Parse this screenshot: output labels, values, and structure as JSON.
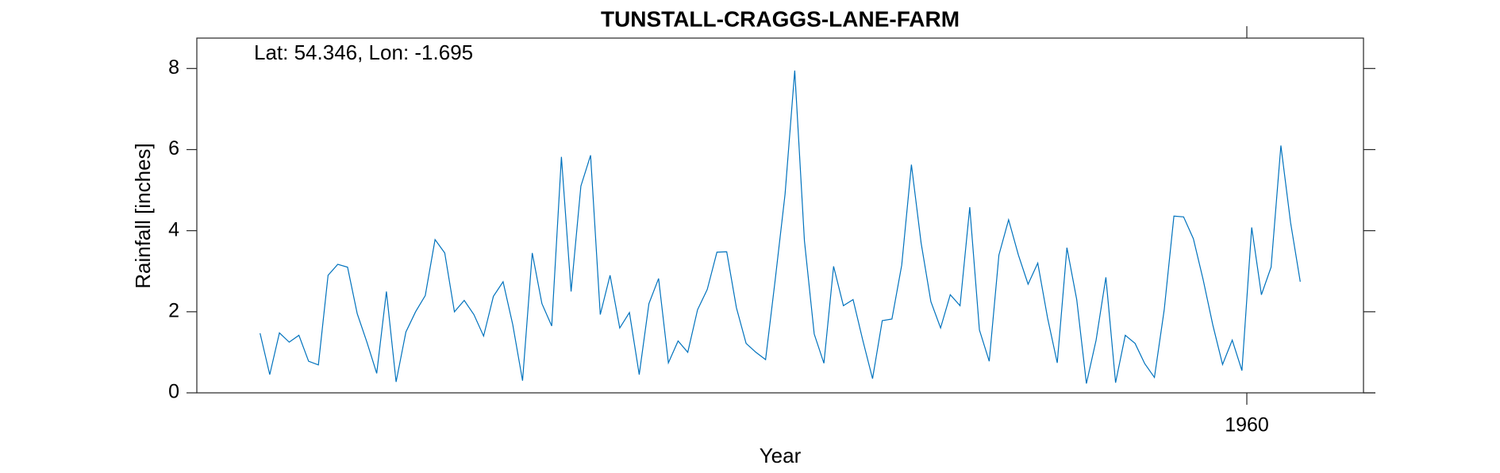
{
  "chart_data": {
    "type": "line",
    "title": "TUNSTALL-CRAGGS-LANE-FARM",
    "annotation": "Lat: 54.346, Lon: -1.695",
    "xlabel": "Year",
    "ylabel": "Rainfall [inches]",
    "xlim": [
      1951,
      1961
    ],
    "xticks": [
      1960
    ],
    "ylim": [
      0,
      8.75
    ],
    "yticks": [
      0,
      2,
      4,
      6,
      8
    ],
    "grid": false,
    "x": [
      1951.542,
      1951.625,
      1951.708,
      1951.792,
      1951.875,
      1951.958,
      1952.042,
      1952.125,
      1952.208,
      1952.292,
      1952.375,
      1952.458,
      1952.542,
      1952.625,
      1952.708,
      1952.792,
      1952.875,
      1952.958,
      1953.042,
      1953.125,
      1953.208,
      1953.292,
      1953.375,
      1953.458,
      1953.542,
      1953.625,
      1953.708,
      1953.792,
      1953.875,
      1953.958,
      1954.042,
      1954.125,
      1954.208,
      1954.292,
      1954.375,
      1954.458,
      1954.542,
      1954.625,
      1954.708,
      1954.792,
      1954.875,
      1954.958,
      1955.042,
      1955.125,
      1955.208,
      1955.292,
      1955.375,
      1955.458,
      1955.542,
      1955.625,
      1955.708,
      1955.792,
      1955.875,
      1955.958,
      1956.042,
      1956.125,
      1956.208,
      1956.292,
      1956.375,
      1956.458,
      1956.542,
      1956.625,
      1956.708,
      1956.792,
      1956.875,
      1956.958,
      1957.042,
      1957.125,
      1957.208,
      1957.292,
      1957.375,
      1957.458,
      1957.542,
      1957.625,
      1957.708,
      1957.792,
      1957.875,
      1957.958,
      1958.042,
      1958.125,
      1958.208,
      1958.292,
      1958.375,
      1958.458,
      1958.542,
      1958.625,
      1958.708,
      1958.792,
      1958.875,
      1958.958,
      1959.042,
      1959.125,
      1959.208,
      1959.292,
      1959.375,
      1959.458,
      1959.542,
      1959.625,
      1959.708,
      1959.792,
      1959.875,
      1959.958,
      1960.042,
      1960.125,
      1960.208,
      1960.292,
      1960.375,
      1960.458
    ],
    "series": [
      {
        "name": "Rainfall",
        "color": "#0072bd",
        "values": [
          1.47,
          0.45,
          1.48,
          1.25,
          1.42,
          0.78,
          0.69,
          2.9,
          3.17,
          3.1,
          1.95,
          1.25,
          0.48,
          2.5,
          0.27,
          1.5,
          2.0,
          2.4,
          3.78,
          3.45,
          2.0,
          2.28,
          1.93,
          1.4,
          2.38,
          2.74,
          1.68,
          0.3,
          3.45,
          2.2,
          1.65,
          5.82,
          2.5,
          5.1,
          5.86,
          1.93,
          2.9,
          1.6,
          1.98,
          0.45,
          2.2,
          2.82,
          0.74,
          1.28,
          1.0,
          2.05,
          2.55,
          3.47,
          3.48,
          2.1,
          1.22,
          1.0,
          0.82,
          2.8,
          4.9,
          7.95,
          3.75,
          1.45,
          0.73,
          3.12,
          2.15,
          2.3,
          1.3,
          0.35,
          1.78,
          1.82,
          3.15,
          5.63,
          3.7,
          2.25,
          1.6,
          2.42,
          2.15,
          4.58,
          1.55,
          0.78,
          3.4,
          4.27,
          3.4,
          2.68,
          3.2,
          1.85,
          0.74,
          3.58,
          2.3,
          0.23,
          1.3,
          2.85,
          0.25,
          1.42,
          1.22,
          0.72,
          0.38,
          2.05,
          4.36,
          4.34,
          3.8,
          2.8,
          1.68,
          0.7,
          1.3,
          0.55,
          4.08,
          2.42,
          3.1,
          6.1,
          4.2,
          2.74
        ]
      }
    ]
  }
}
